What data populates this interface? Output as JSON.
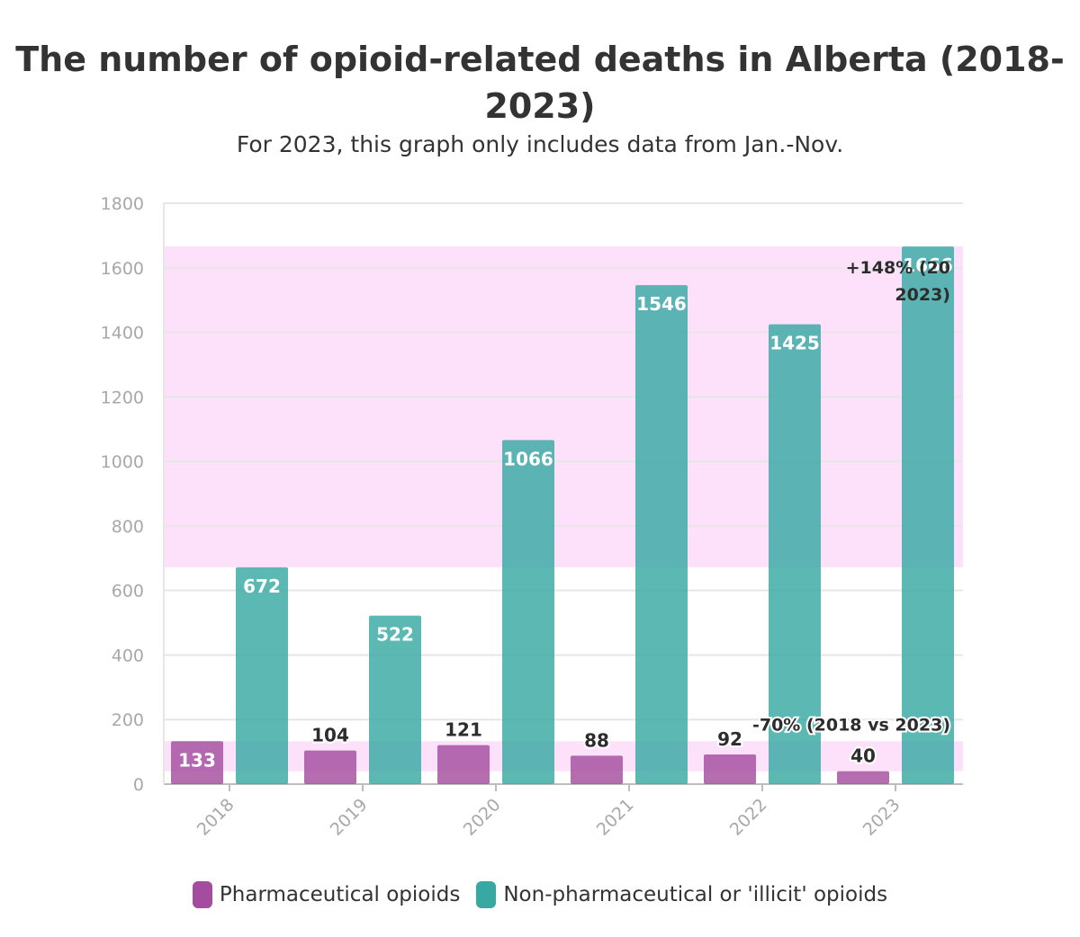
{
  "chart_data": {
    "type": "bar",
    "title": "The number of opioid-related deaths in Alberta (2018-2023)",
    "subtitle": "For 2023, this graph only includes data from Jan.-Nov.",
    "categories": [
      "2018",
      "2019",
      "2020",
      "2021",
      "2022",
      "2023"
    ],
    "series": [
      {
        "name": "Pharmaceutical opioids",
        "values": [
          133,
          104,
          121,
          88,
          92,
          40
        ],
        "color": "#a44d9e"
      },
      {
        "name": "Non-pharmaceutical or 'illicit' opioids",
        "values": [
          672,
          522,
          1066,
          1546,
          1425,
          1666
        ],
        "color": "#37a8a2"
      }
    ],
    "ylim": [
      0,
      1800
    ],
    "yticks": [
      0,
      200,
      400,
      600,
      800,
      1000,
      1200,
      1400,
      1600,
      1800
    ],
    "grid": true,
    "legend": "bottom",
    "bands": [
      {
        "from": 672,
        "to": 1666,
        "color": "#fde1fb"
      },
      {
        "from": 40,
        "to": 133,
        "color": "#fde1fb"
      }
    ],
    "annotations": [
      {
        "text_lines": [
          "+148% (20",
          "2023)"
        ],
        "y": 1666
      },
      {
        "text_lines": [
          "-70% (2018 vs 2023)"
        ],
        "y": 133
      }
    ]
  }
}
